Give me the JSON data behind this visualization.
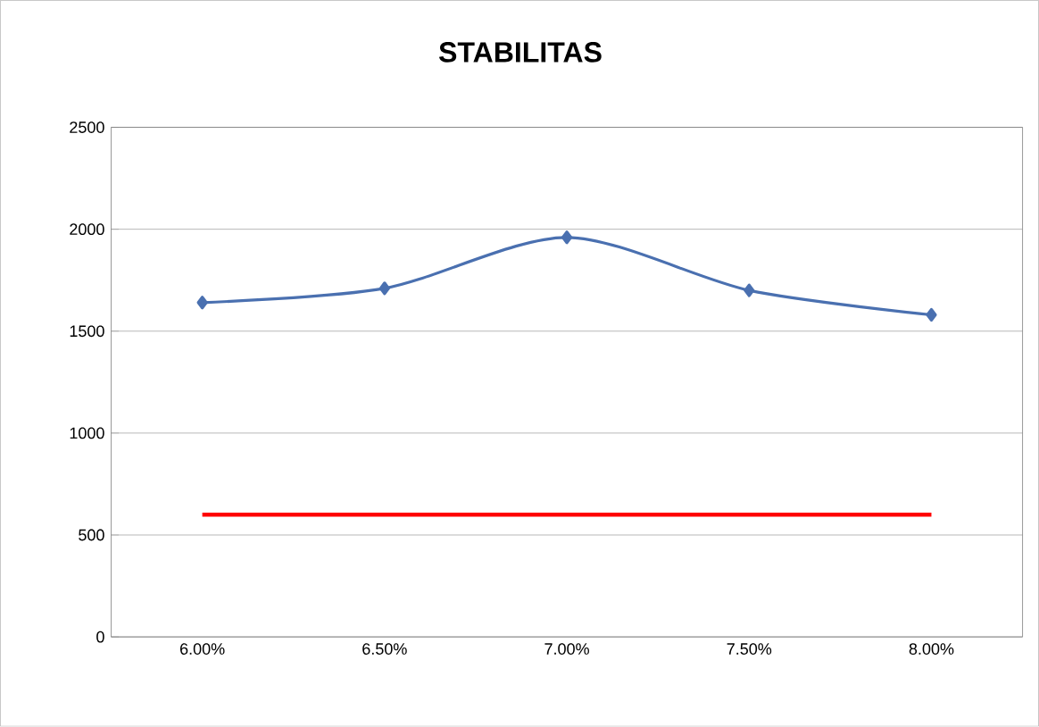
{
  "chart_data": {
    "type": "line",
    "title": "STABILITAS",
    "categories": [
      "6.00%",
      "6.50%",
      "7.00%",
      "7.50%",
      "8.00%"
    ],
    "series": [
      {
        "color": "#4a70b0",
        "values": [
          1640,
          1710,
          1960,
          1700,
          1580
        ],
        "marker": "diamond"
      },
      {
        "color": "#ff0000",
        "values": [
          600,
          600,
          600,
          600,
          600
        ],
        "marker": "none"
      }
    ],
    "ylim": [
      0,
      2500
    ],
    "yticks": [
      0,
      500,
      1000,
      1500,
      2000,
      2500
    ],
    "grid": "y"
  }
}
